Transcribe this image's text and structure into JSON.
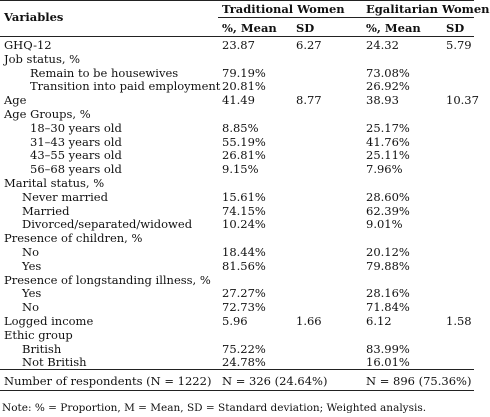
{
  "header": {
    "variables": "Variables",
    "group1": "Traditional Women",
    "group2": "Egalitarian Women",
    "mean_label": "%, Mean",
    "sd_label": "SD"
  },
  "rows": [
    {
      "label": "GHQ-12",
      "indent": 0,
      "t_mean": "23.87",
      "t_sd": "6.27",
      "e_mean": "24.32",
      "e_sd": "5.79"
    },
    {
      "label": "Job status, %",
      "indent": 0,
      "t_mean": "",
      "t_sd": "",
      "e_mean": "",
      "e_sd": ""
    },
    {
      "label": "Remain to be housewives",
      "indent": 2,
      "t_mean": "79.19%",
      "t_sd": "",
      "e_mean": "73.08%",
      "e_sd": ""
    },
    {
      "label": "Transition into paid employment",
      "indent": 2,
      "t_mean": "20.81%",
      "t_sd": "",
      "e_mean": "26.92%",
      "e_sd": ""
    },
    {
      "label": "Age",
      "indent": 0,
      "t_mean": "41.49",
      "t_sd": "8.77",
      "e_mean": "38.93",
      "e_sd": "10.37"
    },
    {
      "label": "Age Groups, %",
      "indent": 0,
      "t_mean": "",
      "t_sd": "",
      "e_mean": "",
      "e_sd": ""
    },
    {
      "label": "18–30 years old",
      "indent": 2,
      "t_mean": "8.85%",
      "t_sd": "",
      "e_mean": "25.17%",
      "e_sd": ""
    },
    {
      "label": "31–43 years old",
      "indent": 2,
      "t_mean": "55.19%",
      "t_sd": "",
      "e_mean": "41.76%",
      "e_sd": ""
    },
    {
      "label": "43–55 years old",
      "indent": 2,
      "t_mean": "26.81%",
      "t_sd": "",
      "e_mean": "25.11%",
      "e_sd": ""
    },
    {
      "label": "56–68 years old",
      "indent": 2,
      "t_mean": "9.15%",
      "t_sd": "",
      "e_mean": "7.96%",
      "e_sd": ""
    },
    {
      "label": "Marital status, %",
      "indent": 0,
      "t_mean": "",
      "t_sd": "",
      "e_mean": "",
      "e_sd": ""
    },
    {
      "label": "Never married",
      "indent": 1,
      "t_mean": "15.61%",
      "t_sd": "",
      "e_mean": "28.60%",
      "e_sd": ""
    },
    {
      "label": "Married",
      "indent": 1,
      "t_mean": "74.15%",
      "t_sd": "",
      "e_mean": "62.39%",
      "e_sd": ""
    },
    {
      "label": "Divorced/separated/widowed",
      "indent": 1,
      "t_mean": "10.24%",
      "t_sd": "",
      "e_mean": "9.01%",
      "e_sd": ""
    },
    {
      "label": "Presence of children, %",
      "indent": 0,
      "t_mean": "",
      "t_sd": "",
      "e_mean": "",
      "e_sd": ""
    },
    {
      "label": "No",
      "indent": 1,
      "t_mean": "18.44%",
      "t_sd": "",
      "e_mean": "20.12%",
      "e_sd": ""
    },
    {
      "label": "Yes",
      "indent": 1,
      "t_mean": "81.56%",
      "t_sd": "",
      "e_mean": "79.88%",
      "e_sd": ""
    },
    {
      "label": "Presence of longstanding illness, %",
      "indent": 0,
      "t_mean": "",
      "t_sd": "",
      "e_mean": "",
      "e_sd": ""
    },
    {
      "label": "Yes",
      "indent": 1,
      "t_mean": "27.27%",
      "t_sd": "",
      "e_mean": "28.16%",
      "e_sd": ""
    },
    {
      "label": "No",
      "indent": 1,
      "t_mean": "72.73%",
      "t_sd": "",
      "e_mean": "71.84%",
      "e_sd": ""
    },
    {
      "label": "Logged income",
      "indent": 0,
      "t_mean": "5.96",
      "t_sd": "1.66",
      "e_mean": "6.12",
      "e_sd": "1.58"
    },
    {
      "label": "Ethic group",
      "indent": 0,
      "t_mean": "",
      "t_sd": "",
      "e_mean": "",
      "e_sd": ""
    },
    {
      "label": "British",
      "indent": 1,
      "t_mean": "75.22%",
      "t_sd": "",
      "e_mean": "83.99%",
      "e_sd": ""
    },
    {
      "label": "Not British",
      "indent": 1,
      "t_mean": "24.78%",
      "t_sd": "",
      "e_mean": "16.01%",
      "e_sd": ""
    }
  ],
  "footer_row": {
    "label": "Number of respondents (N = 1222)",
    "t_value": "N = 326 (24.64%)",
    "e_value": "N = 896 (75.36%)"
  },
  "note": "Note: % = Proportion, M = Mean, SD = Standard deviation; Weighted analysis."
}
